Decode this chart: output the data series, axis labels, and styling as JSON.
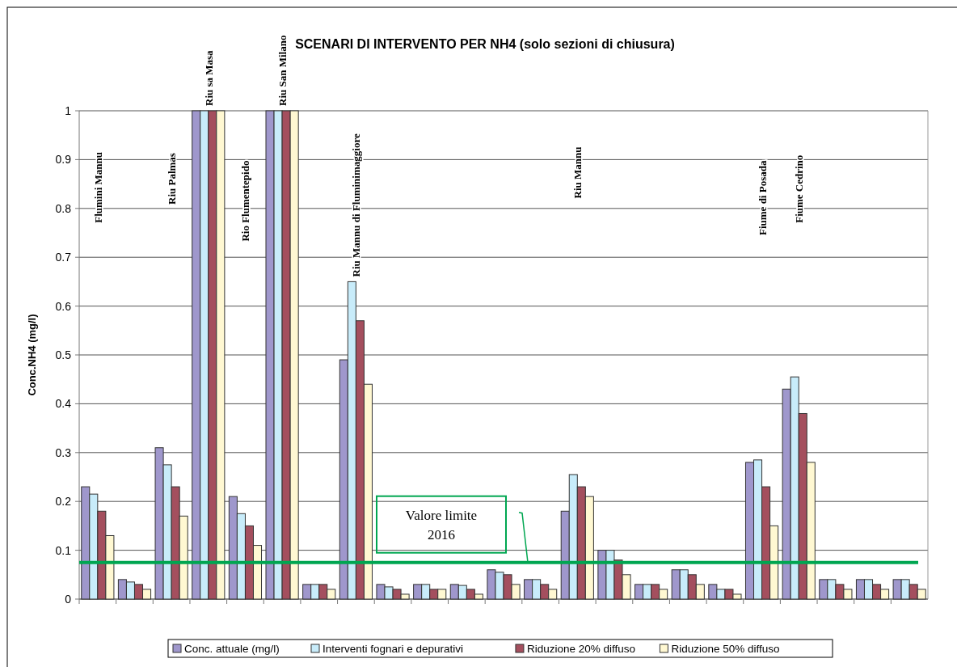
{
  "chart_data": {
    "type": "bar",
    "title": "SCENARI DI INTERVENTO PER NH4 (solo sezioni di chiusura)",
    "ylabel": "Conc.NH4 (mg/l)",
    "categories": [
      "Flumini Mannu",
      null,
      "Riu Palmas",
      "Riu sa Masa",
      "Rio Flumentepido",
      "Riu San Milano",
      null,
      "Riu Mannu di Fluminimaggiore",
      null,
      null,
      null,
      null,
      null,
      "Riu Mannu",
      null,
      null,
      null,
      null,
      "Fiume di Posada",
      "Fiume Cedrino",
      null,
      null,
      null
    ],
    "series": [
      {
        "name": "Conc. attuale (mg/l)",
        "color": "#9f97cc",
        "values": [
          0.23,
          0.04,
          0.31,
          1,
          0.21,
          1,
          0.03,
          0.49,
          0.03,
          0.03,
          0.03,
          0.06,
          0.04,
          0.18,
          0.1,
          0.03,
          0.06,
          0.03,
          0.28,
          0.43,
          0.04,
          0.04,
          0.04
        ]
      },
      {
        "name": "Interventi fognari e depurativi",
        "color": "#c8ecfa",
        "values": [
          0.215,
          0.035,
          0.275,
          1,
          0.175,
          1,
          0.03,
          0.65,
          0.025,
          0.03,
          0.028,
          0.055,
          0.04,
          0.255,
          0.1,
          0.03,
          0.06,
          0.02,
          0.285,
          0.455,
          0.04,
          0.04,
          0.04
        ]
      },
      {
        "name": "Riduzione 20% diffuso",
        "color": "#a44f5e",
        "values": [
          0.18,
          0.03,
          0.23,
          1,
          0.15,
          1,
          0.03,
          0.57,
          0.02,
          0.02,
          0.02,
          0.05,
          0.03,
          0.23,
          0.08,
          0.03,
          0.05,
          0.02,
          0.23,
          0.38,
          0.03,
          0.03,
          0.03
        ]
      },
      {
        "name": "Riduzione 50% diffuso",
        "color": "#fff8d2",
        "values": [
          0.13,
          0.02,
          0.17,
          1,
          0.11,
          1,
          0.02,
          0.44,
          0.01,
          0.02,
          0.01,
          0.03,
          0.02,
          0.21,
          0.05,
          0.02,
          0.03,
          0.01,
          0.15,
          0.28,
          0.02,
          0.02,
          0.02
        ]
      }
    ],
    "ylim": [
      0,
      1
    ],
    "yticks": [
      {
        "value": 0,
        "label": "0"
      },
      {
        "value": 0.1,
        "label": "0.1"
      },
      {
        "value": 0.2,
        "label": "0.2"
      },
      {
        "value": 0.3,
        "label": "0.3"
      },
      {
        "value": 0.4,
        "label": "0.4"
      },
      {
        "value": 0.5,
        "label": "0.5"
      },
      {
        "value": 0.6,
        "label": "0.6"
      },
      {
        "value": 0.7,
        "label": "0.7"
      },
      {
        "value": 0.8,
        "label": "0.8"
      },
      {
        "value": 0.9,
        "label": "0.9"
      },
      {
        "value": 1,
        "label": "1"
      }
    ],
    "grid": "y",
    "legend": "bottom",
    "ref_lines": [
      {
        "axis": "y",
        "value": 0.075,
        "label": "Valore limite 2016",
        "color": "#00a651"
      }
    ]
  }
}
